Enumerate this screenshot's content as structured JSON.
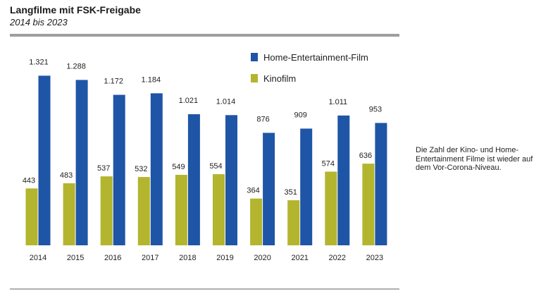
{
  "header": {
    "title": "Langfilme mit FSK-Freigabe",
    "subtitle": "2014 bis 2023"
  },
  "note": "Die Zahl der Kino- und Home-Entertainment Filme ist wieder auf dem Vor-Corona-Niveau.",
  "colors": {
    "home": "#1f55a6",
    "kino": "#b3b52e",
    "rule": "#9e9e9e"
  },
  "chart_data": {
    "type": "bar",
    "title": "Langfilme mit FSK-Freigabe",
    "subtitle": "2014 bis 2023",
    "xlabel": "",
    "ylabel": "",
    "ylim": [
      0,
      1400
    ],
    "grid": false,
    "legend_position": "top-right",
    "categories": [
      "2014",
      "2015",
      "2016",
      "2017",
      "2018",
      "2019",
      "2020",
      "2021",
      "2022",
      "2023"
    ],
    "series": [
      {
        "name": "Kinofilm",
        "values": [
          443,
          483,
          537,
          532,
          549,
          554,
          364,
          351,
          574,
          636
        ],
        "labels": [
          "443",
          "483",
          "537",
          "532",
          "549",
          "554",
          "364",
          "351",
          "574",
          "636"
        ]
      },
      {
        "name": "Home-Entertainment-Film",
        "values": [
          1321,
          1288,
          1172,
          1184,
          1021,
          1014,
          876,
          909,
          1011,
          953
        ],
        "labels": [
          "1.321",
          "1.288",
          "1.172",
          "1.184",
          "1.021",
          "1.014",
          "876",
          "909",
          "1.011",
          "953"
        ]
      }
    ]
  }
}
